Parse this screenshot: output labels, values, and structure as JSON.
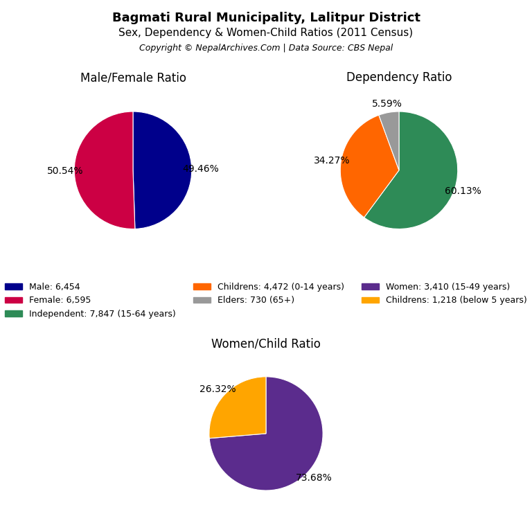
{
  "title": "Bagmati Rural Municipality, Lalitpur District",
  "subtitle": "Sex, Dependency & Women-Child Ratios (2011 Census)",
  "annotations": [
    "Copyright © NepalArchives.Com | Data Source: CBS Nepal"
  ],
  "legend": "center",
  "chart_data": [
    {
      "type": "pie",
      "title": "Male/Female Ratio",
      "categories": [
        "Male: 6,454",
        "Female: 6,595"
      ],
      "values": [
        49.46,
        50.54
      ],
      "value_labels": [
        "49.46%",
        "50.54%"
      ],
      "colors": [
        "#00008B",
        "#CC0044"
      ],
      "data_labels": true
    },
    {
      "type": "pie",
      "title": "Dependency Ratio",
      "categories": [
        "Independent: 7,847 (15-64 years)",
        "Childrens: 4,472 (0-14 years)",
        "Elders: 730 (65+)"
      ],
      "values": [
        60.13,
        34.27,
        5.59
      ],
      "value_labels": [
        "60.13%",
        "34.27%",
        "5.59%"
      ],
      "colors": [
        "#2E8B57",
        "#FF6600",
        "#999999"
      ],
      "data_labels": true
    },
    {
      "type": "pie",
      "title": "Women/Child Ratio",
      "categories": [
        "Women: 3,410 (15-49 years)",
        "Childrens: 1,218 (below 5 years)"
      ],
      "values": [
        73.68,
        26.32
      ],
      "value_labels": [
        "73.68%",
        "26.32%"
      ],
      "colors": [
        "#5B2C8D",
        "#FFA500"
      ],
      "data_labels": true
    }
  ]
}
